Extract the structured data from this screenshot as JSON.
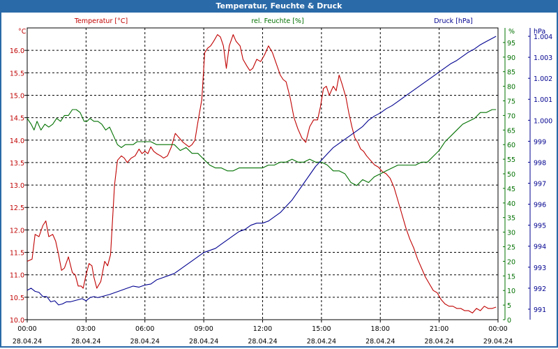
{
  "window": {
    "title": "Temperatur, Feuchte & Druck"
  },
  "chart_data": {
    "type": "line",
    "title": "Temperatur, Feuchte & Druck",
    "grid": true,
    "x": {
      "min": 0,
      "max": 24,
      "ticks": [
        0,
        3,
        6,
        9,
        12,
        15,
        18,
        21,
        24
      ],
      "tick_labels_time": [
        "00:00",
        "03:00",
        "06:00",
        "09:00",
        "12:00",
        "15:00",
        "18:00",
        "21:00",
        "00:00"
      ],
      "tick_labels_date": [
        "28.04.24",
        "28.04.24",
        "28.04.24",
        "28.04.24",
        "28.04.24",
        "28.04.24",
        "28.04.24",
        "28.04.24",
        "29.04.24"
      ]
    },
    "axes": {
      "temperature": {
        "label": "Temperatur [°C]",
        "unit": "°C",
        "color": "#c00000",
        "ylim": [
          10.0,
          16.5
        ],
        "ticks": [
          "10.0",
          "10.5",
          "11.0",
          "11.5",
          "12.0",
          "12.5",
          "13.0",
          "13.5",
          "14.0",
          "14.5",
          "15.0",
          "15.5",
          "16.0"
        ]
      },
      "humidity": {
        "label": "rel. Feuchte [%]",
        "unit": "%",
        "color": "#007000",
        "ylim": [
          0,
          100
        ],
        "ticks": [
          "0",
          "5",
          "10",
          "15",
          "20",
          "25",
          "30",
          "35",
          "40",
          "45",
          "50",
          "55",
          "60",
          "65",
          "70",
          "75",
          "80",
          "85",
          "90",
          "95"
        ]
      },
      "pressure": {
        "label": "Druck [hPa]",
        "unit": "hPa",
        "color": "#000090",
        "ylim": [
          990.5,
          1004.4
        ],
        "ticks": [
          "991",
          "992",
          "993",
          "994",
          "995",
          "996",
          "997",
          "998",
          "999",
          "1.000",
          "1.001",
          "1.002",
          "1.003",
          "1.004"
        ]
      }
    },
    "series": [
      {
        "name": "Temperatur [°C]",
        "axis": "temperature",
        "color": "#c00000",
        "x": [
          0,
          0.25,
          0.4,
          0.6,
          0.8,
          0.95,
          1.1,
          1.3,
          1.45,
          1.6,
          1.75,
          1.9,
          2.1,
          2.3,
          2.45,
          2.6,
          2.75,
          2.85,
          3.0,
          3.15,
          3.3,
          3.4,
          3.55,
          3.75,
          3.95,
          4.1,
          4.25,
          4.45,
          4.6,
          4.8,
          4.95,
          5.1,
          5.3,
          5.5,
          5.7,
          5.85,
          6.0,
          6.15,
          6.3,
          6.45,
          6.6,
          6.8,
          6.95,
          7.15,
          7.35,
          7.55,
          7.75,
          7.95,
          8.1,
          8.25,
          8.4,
          8.55,
          8.7,
          8.9,
          9.05,
          9.2,
          9.35,
          9.5,
          9.7,
          9.85,
          10.0,
          10.15,
          10.3,
          10.5,
          10.65,
          10.85,
          11.0,
          11.2,
          11.35,
          11.5,
          11.7,
          11.9,
          12.1,
          12.3,
          12.5,
          12.7,
          12.9,
          13.05,
          13.2,
          13.4,
          13.6,
          13.8,
          14.0,
          14.2,
          14.4,
          14.6,
          14.8,
          14.95,
          15.1,
          15.25,
          15.4,
          15.6,
          15.75,
          15.9,
          16.05,
          16.25,
          16.4,
          16.55,
          16.7,
          16.85,
          17.0,
          17.15,
          17.3,
          17.5,
          17.7,
          17.9,
          18.1,
          18.3,
          18.5,
          18.7,
          18.9,
          19.1,
          19.3,
          19.5,
          19.7,
          19.9,
          20.1,
          20.3,
          20.5,
          20.7,
          20.9,
          21.1,
          21.3,
          21.5,
          21.7,
          21.9,
          22.1,
          22.3,
          22.5,
          22.7,
          22.9,
          23.1,
          23.3,
          23.5,
          23.7,
          23.9
        ],
        "values": [
          11.3,
          11.35,
          11.9,
          11.85,
          12.1,
          12.2,
          11.85,
          11.9,
          11.75,
          11.45,
          11.1,
          11.15,
          11.4,
          11.05,
          11.0,
          10.75,
          10.75,
          10.7,
          11.0,
          11.25,
          11.2,
          10.95,
          10.7,
          10.85,
          11.3,
          11.2,
          11.45,
          13.0,
          13.55,
          13.65,
          13.6,
          13.5,
          13.6,
          13.65,
          13.8,
          13.7,
          13.75,
          13.7,
          13.85,
          13.75,
          13.7,
          13.65,
          13.6,
          13.65,
          13.85,
          14.15,
          14.05,
          13.95,
          13.9,
          13.85,
          13.9,
          14.0,
          14.4,
          14.9,
          15.95,
          16.05,
          16.1,
          16.2,
          16.35,
          16.3,
          16.1,
          15.6,
          16.1,
          16.35,
          16.2,
          16.1,
          15.8,
          15.65,
          15.55,
          15.6,
          15.8,
          15.75,
          15.9,
          16.1,
          15.95,
          15.7,
          15.45,
          15.35,
          15.3,
          14.95,
          14.5,
          14.25,
          14.05,
          13.95,
          14.3,
          14.45,
          14.45,
          14.75,
          15.15,
          15.2,
          15.0,
          15.2,
          15.1,
          15.45,
          15.25,
          14.95,
          14.6,
          14.3,
          14.05,
          13.95,
          13.8,
          13.75,
          13.65,
          13.55,
          13.45,
          13.4,
          13.3,
          13.25,
          13.15,
          12.95,
          12.65,
          12.35,
          12.05,
          11.8,
          11.6,
          11.35,
          11.15,
          10.95,
          10.8,
          10.65,
          10.6,
          10.45,
          10.35,
          10.3,
          10.3,
          10.25,
          10.25,
          10.2,
          10.2,
          10.15,
          10.25,
          10.2,
          10.3,
          10.25,
          10.25,
          10.28
        ]
      },
      {
        "name": "rel. Feuchte [%]",
        "axis": "humidity",
        "color": "#007000",
        "x": [
          0,
          0.2,
          0.35,
          0.5,
          0.7,
          0.9,
          1.1,
          1.3,
          1.5,
          1.7,
          1.9,
          2.1,
          2.3,
          2.5,
          2.7,
          2.9,
          3.05,
          3.2,
          3.4,
          3.6,
          3.8,
          4.0,
          4.2,
          4.4,
          4.6,
          4.8,
          5.0,
          5.2,
          5.4,
          5.6,
          5.8,
          6.0,
          6.3,
          6.6,
          6.9,
          7.2,
          7.5,
          7.8,
          8.1,
          8.4,
          8.7,
          9.0,
          9.3,
          9.6,
          9.9,
          10.2,
          10.5,
          10.8,
          11.1,
          11.4,
          11.7,
          12.0,
          12.3,
          12.6,
          12.9,
          13.2,
          13.5,
          13.8,
          14.1,
          14.4,
          14.7,
          15.0,
          15.3,
          15.6,
          15.9,
          16.2,
          16.5,
          16.8,
          17.1,
          17.4,
          17.7,
          18.0,
          18.3,
          18.6,
          18.9,
          19.2,
          19.5,
          19.8,
          20.1,
          20.4,
          20.7,
          21.0,
          21.3,
          21.6,
          21.9,
          22.2,
          22.5,
          22.8,
          23.1,
          23.4,
          23.7,
          23.9
        ],
        "values": [
          69,
          67,
          65,
          68,
          65,
          67,
          66,
          67,
          69,
          68,
          70,
          70,
          72,
          72,
          71,
          68,
          68,
          69,
          68,
          68,
          67,
          65,
          66,
          63,
          60,
          59,
          60,
          60,
          60,
          61,
          61,
          61,
          61,
          60,
          60,
          60,
          60,
          58,
          59,
          57,
          57,
          55,
          53,
          52,
          52,
          51,
          51,
          52,
          52,
          52,
          52,
          52,
          53,
          53,
          54,
          54,
          55,
          54,
          54,
          55,
          54,
          54,
          53,
          51,
          51,
          50,
          47,
          46,
          48,
          47,
          49,
          50,
          51,
          52,
          53,
          53,
          53,
          53,
          54,
          54,
          56,
          58,
          61,
          63,
          65,
          67,
          68,
          69,
          71,
          71,
          72,
          72
        ]
      },
      {
        "name": "Druck [hPa]",
        "axis": "pressure",
        "color": "#000090",
        "x": [
          0,
          0.2,
          0.4,
          0.6,
          0.8,
          1.0,
          1.2,
          1.4,
          1.6,
          1.8,
          2.0,
          2.2,
          2.4,
          2.6,
          2.8,
          3.0,
          3.2,
          3.4,
          3.6,
          3.8,
          4.0,
          4.2,
          4.5,
          4.8,
          5.1,
          5.4,
          5.7,
          6.0,
          6.3,
          6.6,
          6.9,
          7.2,
          7.5,
          7.8,
          8.1,
          8.4,
          8.7,
          9.0,
          9.3,
          9.6,
          9.9,
          10.2,
          10.5,
          10.8,
          11.1,
          11.4,
          11.7,
          12.0,
          12.3,
          12.6,
          12.9,
          13.2,
          13.5,
          13.8,
          14.1,
          14.4,
          14.7,
          15.0,
          15.3,
          15.6,
          15.9,
          16.2,
          16.5,
          16.8,
          17.1,
          17.4,
          17.7,
          18.0,
          18.3,
          18.6,
          18.9,
          19.2,
          19.5,
          19.8,
          20.1,
          20.4,
          20.7,
          21.0,
          21.3,
          21.6,
          21.9,
          22.2,
          22.5,
          22.8,
          23.1,
          23.4,
          23.7,
          23.9
        ],
        "values": [
          991.9,
          992.0,
          991.85,
          991.8,
          991.6,
          991.6,
          991.35,
          991.4,
          991.2,
          991.25,
          991.35,
          991.35,
          991.4,
          991.45,
          991.5,
          991.4,
          991.55,
          991.6,
          991.55,
          991.6,
          991.65,
          991.7,
          991.8,
          991.9,
          992.0,
          992.1,
          992.05,
          992.15,
          992.2,
          992.4,
          992.5,
          992.6,
          992.7,
          992.9,
          993.1,
          993.3,
          993.5,
          993.7,
          993.8,
          993.9,
          994.1,
          994.3,
          994.5,
          994.7,
          994.8,
          995.0,
          995.1,
          995.1,
          995.2,
          995.4,
          995.6,
          995.9,
          996.2,
          996.6,
          997.0,
          997.4,
          997.8,
          998.1,
          998.4,
          998.7,
          998.9,
          999.1,
          999.3,
          999.5,
          999.7,
          1000.0,
          1000.2,
          1000.35,
          1000.55,
          1000.7,
          1000.9,
          1001.1,
          1001.3,
          1001.5,
          1001.7,
          1001.9,
          1002.1,
          1002.3,
          1002.5,
          1002.7,
          1002.85,
          1003.05,
          1003.25,
          1003.4,
          1003.6,
          1003.75,
          1003.9,
          1004.0
        ]
      }
    ]
  }
}
